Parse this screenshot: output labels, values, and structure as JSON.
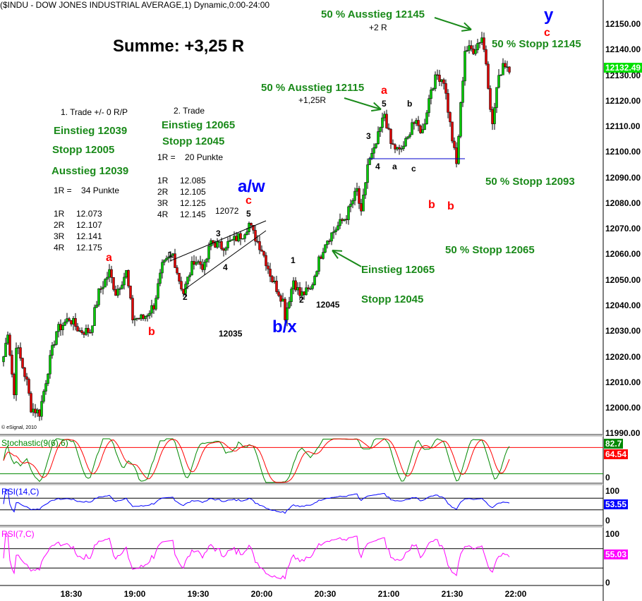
{
  "title": "($INDU - DOW JONES INDUSTRIAL AVERAGE,1) Dynamic,0:00-24:00",
  "copyright": "© eSignal, 2010",
  "annotations": {
    "summe": "Summe: +3,25 R",
    "trade1": "1. Trade +/- 0 R/P",
    "einstieg1": "Einstieg 12039",
    "stopp1": "Stopp 12005",
    "ausstieg1": "Ausstieg 12039",
    "r1_def": "1R =    34 Punkte",
    "t1_levels": [
      [
        "1R",
        "12.073"
      ],
      [
        "2R",
        "12.107"
      ],
      [
        "3R",
        "12.141"
      ],
      [
        "4R",
        "12.175"
      ]
    ],
    "trade2": "2. Trade",
    "einstieg2": "Einstieg 12065",
    "stopp2": "Stopp 12045",
    "r2_def": "1R =    20 Punkte",
    "t2_levels": [
      [
        "1R",
        "12.085"
      ],
      [
        "2R",
        "12.105"
      ],
      [
        "3R",
        "12.125"
      ],
      [
        "4R",
        "12.145"
      ]
    ],
    "p12072": "12072",
    "p12035": "12035",
    "p12045": "12045",
    "aus12115": "50 % Ausstieg 12115",
    "r125": "+1,25R",
    "aus12145": "50 % Ausstieg 12145",
    "r2": "+2 R",
    "stopp12145": "50 % Stopp 12145",
    "stopp12093": "50 % Stopp 12093",
    "stopp12065": "50 % Stopp 12065",
    "einstieg12065": "Einstieg 12065",
    "stopp12045": "Stopp 12045",
    "wave_aw": "a/w",
    "wave_bx": "b/x",
    "wave_y": "y",
    "red_a1": "a",
    "red_b1": "b",
    "red_c1": "c",
    "red_a2": "a",
    "red_b2": "b",
    "red_b3": "b",
    "red_c2": "c",
    "n1": "1",
    "n2": "2",
    "n3": "3",
    "n4": "4",
    "n5": "5",
    "m1": "1",
    "m2": "2",
    "s3": "3",
    "s4": "4",
    "s5": "5",
    "sa": "a",
    "sb": "b",
    "sc": "c"
  },
  "chart_data": {
    "type": "candlestick",
    "interval": "1 min",
    "price_axis": {
      "ticks": [
        "12150.00",
        "12140.00",
        "12130.00",
        "12120.00",
        "12110.00",
        "12100.00",
        "12090.00",
        "12080.00",
        "12070.00",
        "12060.00",
        "12050.00",
        "12040.00",
        "12030.00",
        "12020.00",
        "12010.00",
        "12000.00",
        "11990.00"
      ],
      "range": [
        11990,
        12160
      ]
    },
    "time_axis": {
      "ticks": [
        "18:30",
        "19:00",
        "19:30",
        "20:00",
        "20:30",
        "21:00",
        "21:30",
        "22:00"
      ]
    },
    "last_price": "12132.49",
    "close_path": [
      [
        "17:58",
        12020
      ],
      [
        "18:00",
        12030
      ],
      [
        "18:03",
        12005
      ],
      [
        "18:04",
        12025
      ],
      [
        "18:09",
        12010
      ],
      [
        "18:11",
        12000
      ],
      [
        "18:15",
        11998
      ],
      [
        "18:19",
        12015
      ],
      [
        "18:23",
        12030
      ],
      [
        "18:29",
        12035
      ],
      [
        "18:34",
        12030
      ],
      [
        "18:39",
        12030
      ],
      [
        "18:43",
        12045
      ],
      [
        "18:48",
        12053
      ],
      [
        "18:51",
        12045
      ],
      [
        "18:56",
        12053
      ],
      [
        "18:59",
        12035
      ],
      [
        "19:04",
        12035
      ],
      [
        "19:09",
        12040
      ],
      [
        "19:13",
        12055
      ],
      [
        "19:18",
        12060
      ],
      [
        "19:21",
        12050
      ],
      [
        "19:23",
        12045
      ],
      [
        "19:28",
        12058
      ],
      [
        "19:33",
        12055
      ],
      [
        "19:36",
        12065
      ],
      [
        "19:41",
        12063
      ],
      [
        "19:46",
        12065
      ],
      [
        "19:51",
        12068
      ],
      [
        "19:54",
        12072
      ],
      [
        "19:56",
        12068
      ],
      [
        "20:00",
        12062
      ],
      [
        "20:05",
        12050
      ],
      [
        "20:10",
        12042
      ],
      [
        "20:11",
        12036
      ],
      [
        "20:15",
        12050
      ],
      [
        "20:18",
        12044
      ],
      [
        "20:23",
        12046
      ],
      [
        "20:26",
        12055
      ],
      [
        "20:30",
        12065
      ],
      [
        "20:35",
        12070
      ],
      [
        "20:40",
        12075
      ],
      [
        "20:45",
        12085
      ],
      [
        "20:47",
        12075
      ],
      [
        "20:50",
        12095
      ],
      [
        "20:53",
        12100
      ],
      [
        "20:58",
        12115
      ],
      [
        "21:01",
        12103
      ],
      [
        "21:05",
        12100
      ],
      [
        "21:09",
        12105
      ],
      [
        "21:11",
        12112
      ],
      [
        "21:16",
        12108
      ],
      [
        "21:20",
        12125
      ],
      [
        "21:23",
        12130
      ],
      [
        "21:26",
        12128
      ],
      [
        "21:30",
        12105
      ],
      [
        "21:32",
        12095
      ],
      [
        "21:34",
        12118
      ],
      [
        "21:36",
        12140
      ],
      [
        "21:40",
        12140
      ],
      [
        "21:44",
        12145
      ],
      [
        "21:46",
        12135
      ],
      [
        "21:49",
        12110
      ],
      [
        "21:51",
        12125
      ],
      [
        "21:54",
        12135
      ],
      [
        "21:57",
        12133
      ]
    ],
    "indicators": [
      {
        "name": "Stochastic(9(6),6)",
        "levels": [
          20,
          80
        ],
        "k_last": "82.7",
        "d_last": "64.54",
        "axis": [
          "0"
        ]
      },
      {
        "name": "RSI(14,C)",
        "levels": [
          30,
          70
        ],
        "last": "53.55",
        "axis": [
          "100",
          "0"
        ]
      },
      {
        "name": "RSI(7,C)",
        "levels": [
          30,
          70
        ],
        "last": "55.03",
        "axis": [
          "100",
          "0"
        ]
      }
    ],
    "colors": {
      "up": "#00cc00",
      "down": "#e00000",
      "stoch_k": "#008800",
      "stoch_d": "#ff0000",
      "rsi14": "#0000ff",
      "rsi7": "#ff00ff"
    }
  }
}
